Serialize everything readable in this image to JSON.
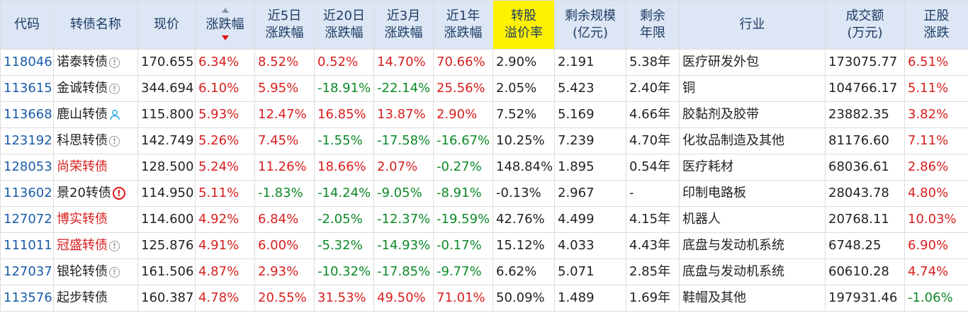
{
  "colors": {
    "header_bg": "#dce6f4",
    "highlight": "#fff200",
    "up": "#d81e1e",
    "down": "#0c8a28",
    "code": "#1a5ca8"
  },
  "headers": {
    "code": "代码",
    "name": "转债名称",
    "price": "现价",
    "change": "涨跌幅",
    "d5_l1": "近5日",
    "d5_l2": "涨跌幅",
    "d20_l1": "近20日",
    "d20_l2": "涨跌幅",
    "m3_l1": "近3月",
    "m3_l2": "涨跌幅",
    "y1_l1": "近1年",
    "y1_l2": "涨跌幅",
    "prem_l1": "转股",
    "prem_l2": "溢价率",
    "size_l1": "剩余规模",
    "size_l2": "(亿元)",
    "term_l1": "剩余",
    "term_l2": "年限",
    "industry": "行业",
    "vol_l1": "成交额",
    "vol_l2": "(万元)",
    "stock_l1": "正股",
    "stock_l2": "涨跌"
  },
  "rows": [
    {
      "code": "118046",
      "name": "诺泰转债",
      "icon": "info-icon",
      "price": "170.655",
      "change": "6.34%",
      "d5": "8.52%",
      "d20": "0.52%",
      "m3": "14.70%",
      "y1": "70.66%",
      "prem": "2.90%",
      "size": "2.191",
      "term": "5.38年",
      "industry": "医疗研发外包",
      "vol": "173075.77",
      "stock": "6.51%"
    },
    {
      "code": "113615",
      "name": "金诚转债",
      "icon": "info-icon",
      "price": "344.694",
      "change": "6.10%",
      "d5": "5.95%",
      "d20": "-18.91%",
      "m3": "-22.14%",
      "y1": "25.56%",
      "prem": "2.05%",
      "size": "5.423",
      "term": "2.40年",
      "industry": "铜",
      "vol": "104766.17",
      "stock": "5.11%"
    },
    {
      "code": "113668",
      "name": "鹿山转债",
      "icon": "user-icon",
      "price": "115.800",
      "change": "5.93%",
      "d5": "12.47%",
      "d20": "16.85%",
      "m3": "13.87%",
      "y1": "2.90%",
      "prem": "7.52%",
      "size": "5.169",
      "term": "4.66年",
      "industry": "胶黏剂及胶带",
      "vol": "23882.35",
      "stock": "3.82%"
    },
    {
      "code": "123192",
      "name": "科思转债",
      "icon": "info-icon",
      "price": "142.749",
      "change": "5.26%",
      "d5": "7.45%",
      "d20": "-1.55%",
      "m3": "-17.58%",
      "y1": "-16.67%",
      "prem": "10.25%",
      "size": "7.239",
      "term": "4.70年",
      "industry": "化妆品制造及其他",
      "vol": "81176.60",
      "stock": "7.11%"
    },
    {
      "code": "128053",
      "name": "尚荣转债",
      "icon": "",
      "red": true,
      "price": "128.500",
      "change": "5.24%",
      "d5": "11.26%",
      "d20": "18.66%",
      "m3": "2.07%",
      "y1": "-0.27%",
      "prem": "148.84%",
      "size": "1.895",
      "term": "0.54年",
      "industry": "医疗耗材",
      "vol": "68036.61",
      "stock": "2.86%"
    },
    {
      "code": "113602",
      "name": "景20转债",
      "icon": "warning-icon",
      "price": "114.950",
      "change": "5.11%",
      "d5": "-1.83%",
      "d20": "-14.24%",
      "m3": "-9.05%",
      "y1": "-8.91%",
      "prem": "-0.13%",
      "size": "2.967",
      "term": "-",
      "industry": "印制电路板",
      "vol": "28043.78",
      "stock": "4.80%"
    },
    {
      "code": "127072",
      "name": "博实转债",
      "icon": "",
      "red": true,
      "price": "114.600",
      "change": "4.92%",
      "d5": "6.84%",
      "d20": "-2.05%",
      "m3": "-12.37%",
      "y1": "-19.59%",
      "prem": "42.76%",
      "size": "4.499",
      "term": "4.15年",
      "industry": "机器人",
      "vol": "20768.11",
      "stock": "10.03%"
    },
    {
      "code": "111011",
      "name": "冠盛转债",
      "icon": "info-icon",
      "red": true,
      "price": "125.876",
      "change": "4.91%",
      "d5": "6.00%",
      "d20": "-5.32%",
      "m3": "-14.93%",
      "y1": "-0.17%",
      "prem": "15.12%",
      "size": "4.033",
      "term": "4.43年",
      "industry": "底盘与发动机系统",
      "vol": "6748.25",
      "stock": "6.90%"
    },
    {
      "code": "127037",
      "name": "银轮转债",
      "icon": "info-icon",
      "price": "161.506",
      "change": "4.87%",
      "d5": "2.93%",
      "d20": "-10.32%",
      "m3": "-17.85%",
      "y1": "-9.77%",
      "prem": "6.62%",
      "size": "5.071",
      "term": "2.85年",
      "industry": "底盘与发动机系统",
      "vol": "60610.28",
      "stock": "4.74%"
    },
    {
      "code": "113576",
      "name": "起步转债",
      "icon": "",
      "price": "160.387",
      "change": "4.78%",
      "d5": "20.55%",
      "d20": "31.53%",
      "m3": "49.50%",
      "y1": "71.01%",
      "prem": "50.09%",
      "size": "1.489",
      "term": "1.69年",
      "industry": "鞋帽及其他",
      "vol": "197931.46",
      "stock": "-1.06%"
    }
  ]
}
